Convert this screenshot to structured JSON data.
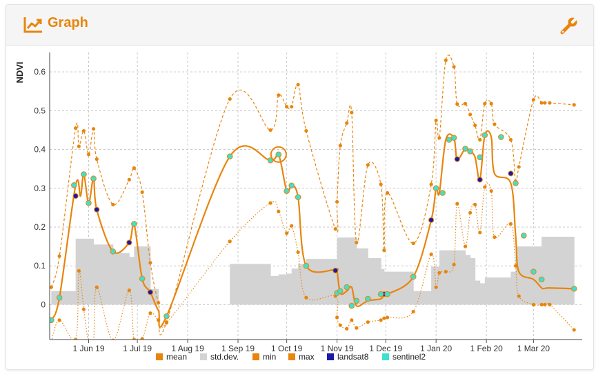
{
  "header": {
    "title": "Graph",
    "title_icon": "line-chart-icon",
    "settings_icon": "wrench-icon"
  },
  "colors": {
    "accent": "#e8850c",
    "mean": "#e8850c",
    "std": "#d3d3d3",
    "landsat8": "#1a1aa6",
    "sentinel2": "#3ee0d0"
  },
  "chart_data": {
    "type": "line",
    "ylabel": "NDVI",
    "ylim": [
      -0.09,
      0.65
    ],
    "yticks": [
      0,
      0.1,
      0.2,
      0.3,
      0.4,
      0.5,
      0.6
    ],
    "ytick_labels": [
      "0",
      "0.1",
      "0.2",
      "0.3",
      "0.4",
      "0.5",
      "0.6"
    ],
    "xlim": [
      "2019-05-08",
      "2020-03-31"
    ],
    "xticks": [
      "2019-06-01",
      "2019-07-01",
      "2019-08-01",
      "2019-09-01",
      "2019-10-01",
      "2019-11-01",
      "2019-12-01",
      "2020-01-01",
      "2020-02-01",
      "2020-03-01"
    ],
    "xtick_labels": [
      "1 Jun 19",
      "1 Jul 19",
      "1 Aug 19",
      "1 Sep 19",
      "1 Oct 19",
      "1 Nov 19",
      "1 Dec 19",
      "1 Jan 20",
      "1 Feb 20",
      "1 Mar 20"
    ],
    "grid": true,
    "legend_position": "bottom",
    "series": [
      {
        "name": "mean",
        "style": "solid",
        "x": [
          "2019-05-09",
          "2019-05-14",
          "2019-05-24",
          "2019-05-27",
          "2019-05-29",
          "2019-06-01",
          "2019-06-04",
          "2019-06-06",
          "2019-06-16",
          "2019-06-26",
          "2019-06-29",
          "2019-07-04",
          "2019-07-09",
          "2019-07-14",
          "2019-07-19",
          "2019-08-27",
          "2019-09-21",
          "2019-09-26",
          "2019-10-01",
          "2019-10-04",
          "2019-10-08",
          "2019-10-13",
          "2019-10-31",
          "2019-11-01",
          "2019-11-03",
          "2019-11-07",
          "2019-11-10",
          "2019-11-13",
          "2019-11-20",
          "2019-11-28",
          "2019-11-30",
          "2019-12-02",
          "2019-12-18",
          "2019-12-29",
          "2020-01-01",
          "2020-01-03",
          "2020-01-07",
          "2020-01-12",
          "2020-01-14",
          "2020-01-19",
          "2020-01-22",
          "2020-01-25",
          "2020-01-28",
          "2020-01-31",
          "2020-02-04",
          "2020-02-06",
          "2020-02-16",
          "2020-02-19",
          "2020-02-21",
          "2020-03-01",
          "2020-03-06",
          "2020-03-08",
          "2020-03-11",
          "2020-03-26"
        ],
        "values": [
          -0.04,
          0.018,
          0.308,
          0.28,
          0.336,
          0.262,
          0.325,
          0.245,
          0.137,
          0.16,
          0.208,
          0.067,
          0.032,
          -0.015,
          -0.03,
          0.382,
          0.372,
          0.387,
          0.293,
          0.307,
          0.277,
          0.1,
          0.09,
          0.088,
          0.03,
          0.035,
          0.045,
          -0.003,
          0.01,
          0.015,
          0.027,
          0.027,
          0.072,
          0.218,
          0.3,
          0.288,
          0.425,
          0.43,
          0.375,
          0.402,
          0.395,
          0.38,
          0.322,
          0.437,
          0.432,
          0.338,
          0.313,
          0.178,
          0.085,
          0.065,
          0.043,
          0.042,
          0.043,
          0.041
        ]
      },
      {
        "name": "max",
        "style": "dashed",
        "x": [
          "2019-05-09",
          "2019-05-14",
          "2019-05-24",
          "2019-05-26",
          "2019-05-29",
          "2019-06-01",
          "2019-06-04",
          "2019-06-06",
          "2019-06-16",
          "2019-06-26",
          "2019-06-29",
          "2019-07-04",
          "2019-07-09",
          "2019-07-14",
          "2019-07-19",
          "2019-08-27",
          "2019-09-21",
          "2019-09-26",
          "2019-10-01",
          "2019-10-04",
          "2019-10-08",
          "2019-10-13",
          "2019-10-31",
          "2019-11-01",
          "2019-11-03",
          "2019-11-07",
          "2019-11-10",
          "2019-11-13",
          "2019-11-20",
          "2019-11-28",
          "2019-11-30",
          "2019-12-02",
          "2019-12-18",
          "2019-12-29",
          "2020-01-01",
          "2020-01-03",
          "2020-01-07",
          "2020-01-12",
          "2020-01-14",
          "2020-01-19",
          "2020-01-22",
          "2020-01-25",
          "2020-01-28",
          "2020-01-31",
          "2020-02-04",
          "2020-02-06",
          "2020-02-16",
          "2020-02-19",
          "2020-02-21",
          "2020-03-01",
          "2020-03-06",
          "2020-03-08",
          "2020-03-11",
          "2020-03-26"
        ],
        "values": [
          0.045,
          0.125,
          0.455,
          0.408,
          0.448,
          0.387,
          0.453,
          0.375,
          0.258,
          0.322,
          0.352,
          0.29,
          0.108,
          0.005,
          -0.045,
          0.53,
          0.45,
          0.54,
          0.51,
          0.51,
          0.567,
          0.448,
          0.195,
          0.265,
          0.41,
          0.468,
          0.495,
          0.16,
          0.36,
          0.31,
          0.14,
          0.288,
          0.158,
          0.31,
          0.475,
          0.43,
          0.63,
          0.613,
          0.517,
          0.518,
          0.49,
          0.462,
          0.425,
          0.518,
          0.518,
          0.465,
          0.425,
          0.318,
          0.355,
          0.528,
          0.52,
          0.52,
          0.52,
          0.515
        ]
      },
      {
        "name": "min",
        "style": "dotted",
        "x": [
          "2019-05-09",
          "2019-05-14",
          "2019-05-24",
          "2019-05-26",
          "2019-05-29",
          "2019-06-01",
          "2019-06-04",
          "2019-06-06",
          "2019-06-16",
          "2019-06-26",
          "2019-06-29",
          "2019-07-04",
          "2019-07-09",
          "2019-07-14",
          "2019-07-19",
          "2019-08-27",
          "2019-09-21",
          "2019-09-26",
          "2019-10-01",
          "2019-10-04",
          "2019-10-08",
          "2019-10-13",
          "2019-10-31",
          "2019-11-01",
          "2019-11-03",
          "2019-11-07",
          "2019-11-10",
          "2019-11-13",
          "2019-11-20",
          "2019-11-28",
          "2019-11-30",
          "2019-12-02",
          "2019-12-18",
          "2019-12-29",
          "2020-01-01",
          "2020-01-03",
          "2020-01-07",
          "2020-01-12",
          "2020-01-14",
          "2020-01-19",
          "2020-01-22",
          "2020-01-25",
          "2020-01-28",
          "2020-01-31",
          "2020-02-04",
          "2020-02-06",
          "2020-02-16",
          "2020-02-19",
          "2020-02-21",
          "2020-03-01",
          "2020-03-06",
          "2020-03-08",
          "2020-03-11",
          "2020-03-26"
        ],
        "values": [
          -0.095,
          -0.04,
          -0.09,
          0.087,
          -0.012,
          -0.096,
          -0.095,
          0.045,
          -0.092,
          0.037,
          -0.09,
          -0.088,
          -0.022,
          -0.04,
          -0.047,
          0.163,
          0.262,
          0.24,
          0.184,
          0.203,
          0.135,
          0.018,
          0.022,
          -0.033,
          -0.053,
          -0.062,
          -0.04,
          -0.06,
          -0.045,
          -0.04,
          -0.035,
          -0.033,
          -0.018,
          0.13,
          0.045,
          0.082,
          0.085,
          0.103,
          0.26,
          0.15,
          0.237,
          0.258,
          0.186,
          0.303,
          0.293,
          0.174,
          0.208,
          0.1,
          0.022,
          0.0,
          0.0,
          0.0,
          0.0,
          -0.065
        ]
      },
      {
        "name": "std.dev.",
        "style": "bars",
        "x": [
          "2019-05-09",
          "2019-05-14",
          "2019-05-24",
          "2019-05-26",
          "2019-05-29",
          "2019-06-01",
          "2019-06-04",
          "2019-06-06",
          "2019-06-16",
          "2019-06-26",
          "2019-06-29",
          "2019-07-04",
          "2019-07-09",
          "2019-07-14",
          "2019-07-19",
          "2019-08-27",
          "2019-09-21",
          "2019-09-26",
          "2019-10-01",
          "2019-10-04",
          "2019-10-08",
          "2019-10-13",
          "2019-10-31",
          "2019-11-01",
          "2019-11-03",
          "2019-11-07",
          "2019-11-10",
          "2019-11-13",
          "2019-11-20",
          "2019-11-28",
          "2019-11-30",
          "2019-12-02",
          "2019-12-18",
          "2019-12-29",
          "2020-01-01",
          "2020-01-03",
          "2020-01-07",
          "2020-01-12",
          "2020-01-14",
          "2020-01-19",
          "2020-01-22",
          "2020-01-25",
          "2020-01-28",
          "2020-01-31",
          "2020-02-04",
          "2020-02-06",
          "2020-02-16",
          "2020-02-19",
          "2020-02-21",
          "2020-03-01",
          "2020-03-06",
          "2020-03-08",
          "2020-03-11",
          "2020-03-26"
        ],
        "values": [
          0.035,
          0.035,
          0.17,
          0.17,
          0.17,
          0.17,
          0.155,
          0.155,
          0.133,
          0.123,
          0.15,
          0.15,
          0.04,
          0.0,
          0.0,
          0.105,
          0.074,
          0.078,
          0.08,
          0.093,
          0.105,
          0.118,
          0.118,
          0.173,
          0.173,
          0.173,
          0.173,
          0.145,
          0.12,
          0.092,
          0.085,
          0.085,
          0.035,
          0.098,
          0.098,
          0.14,
          0.14,
          0.14,
          0.14,
          0.128,
          0.12,
          0.062,
          0.055,
          0.07,
          0.07,
          0.07,
          0.085,
          0.15,
          0.15,
          0.15,
          0.175,
          0.175,
          0.175,
          0.175
        ]
      },
      {
        "name": "landsat8",
        "style": "points",
        "x": [
          "2019-05-24",
          "2019-06-06",
          "2019-06-26",
          "2019-07-09",
          "2019-10-31",
          "2019-11-30",
          "2019-12-29",
          "2020-01-14",
          "2020-01-28",
          "2020-02-16"
        ],
        "values": [
          0.28,
          0.245,
          0.16,
          0.032,
          0.088,
          0.027,
          0.218,
          0.375,
          0.322,
          0.338
        ]
      },
      {
        "name": "sentinel2",
        "style": "points",
        "x": [
          "2019-05-09",
          "2019-05-14",
          "2019-05-23",
          "2019-05-29",
          "2019-06-01",
          "2019-06-04",
          "2019-06-16",
          "2019-06-29",
          "2019-07-04",
          "2019-07-19",
          "2019-08-27",
          "2019-09-21",
          "2019-09-26",
          "2019-10-01",
          "2019-10-04",
          "2019-10-08",
          "2019-10-13",
          "2019-11-01",
          "2019-11-03",
          "2019-11-07",
          "2019-11-10",
          "2019-11-13",
          "2019-11-20",
          "2019-11-28",
          "2019-12-02",
          "2019-12-18",
          "2020-01-01",
          "2020-01-05",
          "2020-01-09",
          "2020-01-12",
          "2020-01-19",
          "2020-01-22",
          "2020-01-28",
          "2020-01-31",
          "2020-02-10",
          "2020-02-19",
          "2020-02-24",
          "2020-03-01",
          "2020-03-06",
          "2020-03-26"
        ],
        "values": [
          -0.04,
          0.018,
          0.308,
          0.336,
          0.262,
          0.325,
          0.137,
          0.208,
          0.067,
          -0.03,
          0.382,
          0.372,
          0.387,
          0.293,
          0.307,
          0.277,
          0.1,
          0.03,
          0.035,
          0.045,
          -0.003,
          0.01,
          0.015,
          0.027,
          0.027,
          0.072,
          0.3,
          0.288,
          0.425,
          0.43,
          0.402,
          0.395,
          0.38,
          0.437,
          0.432,
          0.313,
          0.178,
          0.085,
          0.065,
          0.041
        ]
      }
    ],
    "highlight": {
      "series": "sentinel2",
      "x": "2019-09-26",
      "value": 0.387
    },
    "legend": [
      "mean",
      "std.dev.",
      "min",
      "max",
      "landsat8",
      "sentinel2"
    ]
  }
}
